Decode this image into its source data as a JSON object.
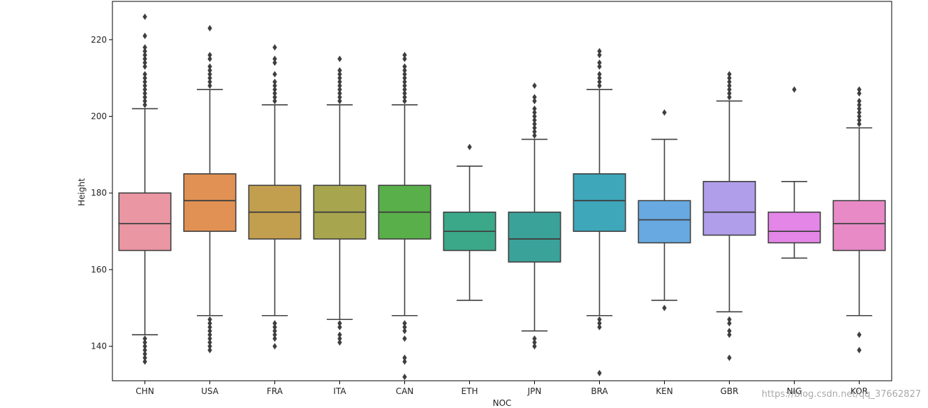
{
  "chart_data": {
    "type": "boxplot",
    "title": "",
    "xlabel": "NOC",
    "ylabel": "Height",
    "ylim": [
      131,
      230
    ],
    "yticks": [
      140,
      160,
      180,
      200,
      220
    ],
    "grid": false,
    "categories": [
      "CHN",
      "USA",
      "FRA",
      "ITA",
      "CAN",
      "ETH",
      "JPN",
      "BRA",
      "KEN",
      "GBR",
      "NIG",
      "KOR"
    ],
    "colors": [
      "#ea96a3",
      "#e19153",
      "#c29f4e",
      "#a7a64f",
      "#59b04a",
      "#3ba889",
      "#3ba29a",
      "#3ea7ba",
      "#67a9e0",
      "#b09eeb",
      "#e386e7",
      "#e78ac6"
    ],
    "series": [
      {
        "name": "CHN",
        "min": 143,
        "q1": 165,
        "median": 172,
        "q3": 180,
        "max": 202,
        "outliers": [
          226,
          221,
          218,
          217,
          216,
          215,
          214,
          213,
          211,
          210,
          209,
          208,
          207,
          206,
          205,
          204,
          203,
          142,
          141,
          140,
          139,
          138,
          137,
          136
        ]
      },
      {
        "name": "USA",
        "min": 148,
        "q1": 170,
        "median": 178,
        "q3": 185,
        "max": 207,
        "outliers": [
          223,
          216,
          215,
          213,
          212,
          211,
          210,
          209,
          208,
          147,
          146,
          145,
          144,
          143,
          142,
          141,
          140,
          139
        ]
      },
      {
        "name": "FRA",
        "min": 148,
        "q1": 168,
        "median": 175,
        "q3": 182,
        "max": 203,
        "outliers": [
          218,
          215,
          214,
          211,
          209,
          208,
          207,
          206,
          205,
          204,
          146,
          145,
          144,
          143,
          142,
          140
        ]
      },
      {
        "name": "ITA",
        "min": 147,
        "q1": 168,
        "median": 175,
        "q3": 182,
        "max": 203,
        "outliers": [
          215,
          212,
          211,
          210,
          209,
          208,
          207,
          206,
          205,
          204,
          146,
          145,
          143,
          142,
          141
        ]
      },
      {
        "name": "CAN",
        "min": 148,
        "q1": 168,
        "median": 175,
        "q3": 182,
        "max": 203,
        "outliers": [
          216,
          215,
          213,
          212,
          211,
          210,
          209,
          208,
          207,
          206,
          205,
          204,
          146,
          145,
          144,
          142,
          137,
          136,
          132
        ]
      },
      {
        "name": "ETH",
        "min": 152,
        "q1": 165,
        "median": 170,
        "q3": 175,
        "max": 187,
        "outliers": [
          192
        ]
      },
      {
        "name": "JPN",
        "min": 144,
        "q1": 162,
        "median": 168,
        "q3": 175,
        "max": 194,
        "outliers": [
          208,
          205,
          204,
          202,
          201,
          200,
          199,
          198,
          197,
          196,
          195,
          142,
          141,
          140
        ]
      },
      {
        "name": "BRA",
        "min": 148,
        "q1": 170,
        "median": 178,
        "q3": 185,
        "max": 207,
        "outliers": [
          217,
          216,
          214,
          213,
          211,
          210,
          209,
          208,
          147,
          146,
          145,
          133
        ]
      },
      {
        "name": "KEN",
        "min": 152,
        "q1": 167,
        "median": 173,
        "q3": 178,
        "max": 194,
        "outliers": [
          201,
          150
        ]
      },
      {
        "name": "GBR",
        "min": 149,
        "q1": 169,
        "median": 175,
        "q3": 183,
        "max": 204,
        "outliers": [
          211,
          210,
          209,
          208,
          207,
          206,
          205,
          147,
          146,
          144,
          143,
          137
        ]
      },
      {
        "name": "NIG",
        "min": 163,
        "q1": 167,
        "median": 170,
        "q3": 175,
        "max": 183,
        "outliers": [
          207
        ]
      },
      {
        "name": "KOR",
        "min": 148,
        "q1": 165,
        "median": 172,
        "q3": 178,
        "max": 197,
        "outliers": [
          207,
          206,
          204,
          203,
          202,
          201,
          200,
          199,
          198,
          143,
          139
        ]
      }
    ]
  },
  "watermark": "https://blog.csdn.net/qq_37662827"
}
